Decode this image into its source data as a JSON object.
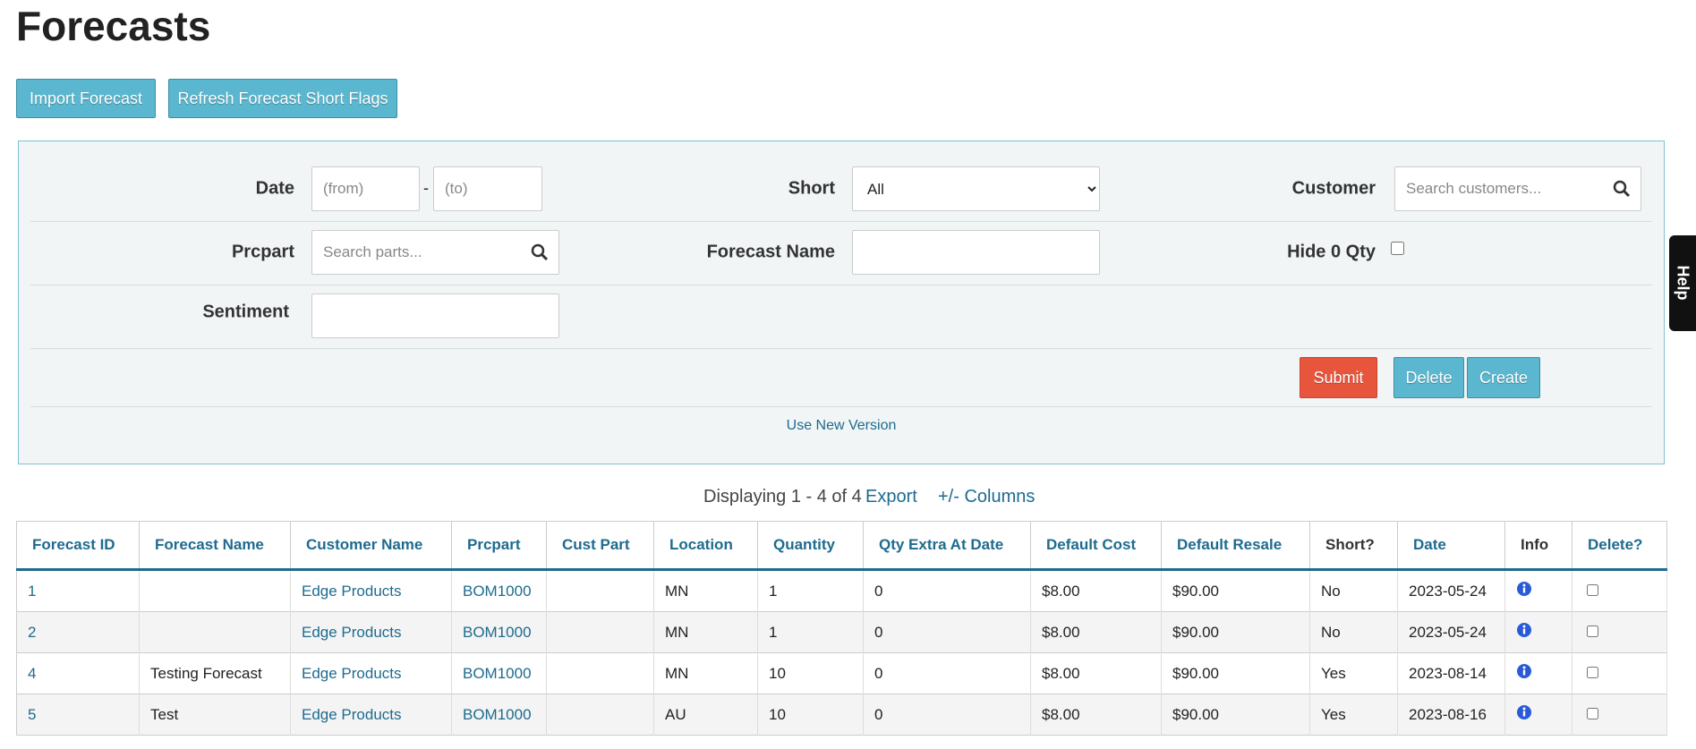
{
  "header": {
    "title": "Forecasts"
  },
  "buttons": [
    "Import Forecast",
    "Refresh Forecast Short Flags"
  ],
  "filters": {
    "date": {
      "label": "Date",
      "from": "(from)",
      "separator": "-",
      "to": "(to)"
    },
    "short": {
      "label": "Short",
      "option": "All"
    },
    "customer": {
      "label": "Customer",
      "placeholder": "Search customers..."
    },
    "prcpart": {
      "label": "Prcpart",
      "placeholder": "Search parts..."
    },
    "forecast_name": {
      "label": "Forecast Name"
    },
    "hide_zero": {
      "label": "Hide 0 Qty"
    },
    "sentiment": {
      "label": "Sentiment"
    },
    "actions": [
      "Submit",
      "Delete",
      "Create"
    ],
    "new_version": "Use New Version"
  },
  "help": "Help",
  "summary": {
    "displaying": "Displaying 1 - 4 of 4",
    "export": "Export",
    "columns": "+/- Columns"
  },
  "table": {
    "columns": [
      "Forecast ID",
      "Forecast Name",
      "Customer Name",
      "Prcpart",
      "Cust Part",
      "Location",
      "Quantity",
      "Qty Extra At Date",
      "Default Cost",
      "Default Resale",
      "Short?",
      "Date",
      "Info",
      "Delete?"
    ],
    "rows": [
      [
        "1",
        null,
        "Edge Products",
        "BOM1000",
        null,
        "MN",
        "1",
        "0",
        "$8.00",
        "$90.00",
        "No",
        "2023-05-24"
      ],
      [
        "2",
        null,
        "Edge Products",
        "BOM1000",
        null,
        "MN",
        "1",
        "0",
        "$8.00",
        "$90.00",
        "No",
        "2023-05-24"
      ],
      [
        "4",
        "Testing Forecast",
        "Edge Products",
        "BOM1000",
        null,
        "MN",
        "10",
        "0",
        "$8.00",
        "$90.00",
        "Yes",
        "2023-08-14"
      ],
      [
        "5",
        "Test",
        "Edge Products",
        "BOM1000",
        null,
        "AU",
        "10",
        "0",
        "$8.00",
        "$90.00",
        "Yes",
        "2023-08-16"
      ]
    ]
  }
}
